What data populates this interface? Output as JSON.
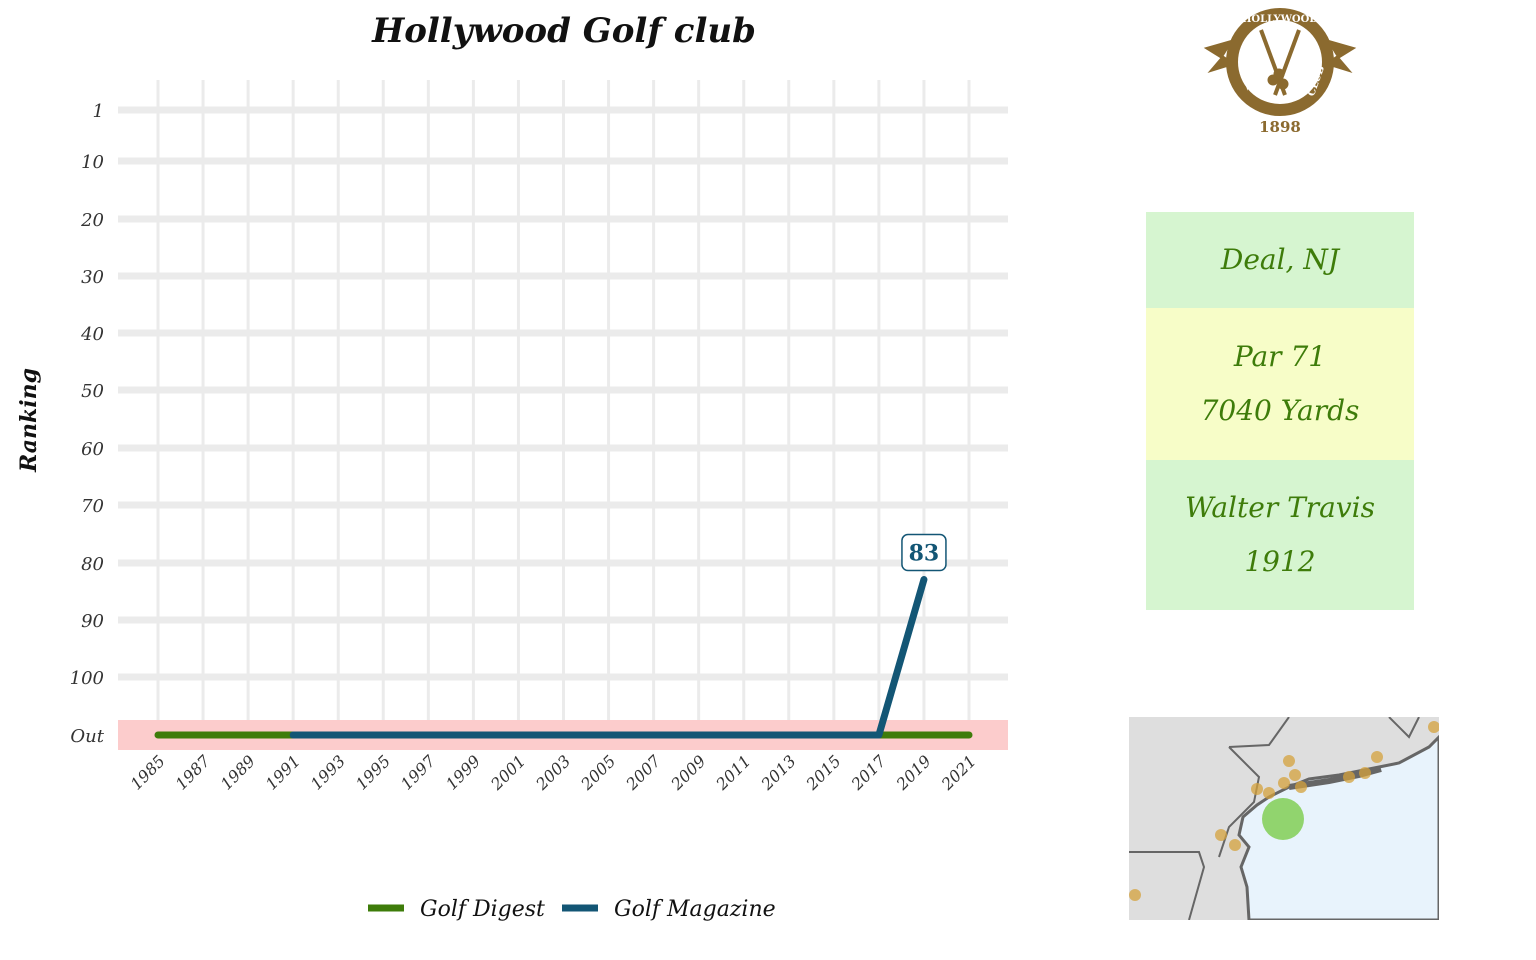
{
  "chart_data": {
    "type": "line",
    "title": "Hollywood Golf club",
    "xlabel": "",
    "ylabel": "Ranking",
    "x": [
      1985,
      1987,
      1989,
      1991,
      1993,
      1995,
      1997,
      1999,
      2001,
      2003,
      2005,
      2007,
      2009,
      2011,
      2013,
      2015,
      2017,
      2019,
      2021
    ],
    "y_tick_labels": [
      "1",
      "10",
      "20",
      "30",
      "40",
      "50",
      "60",
      "70",
      "80",
      "90",
      "100",
      "Out"
    ],
    "y_reversed": true,
    "out_band_color": "#fccccc",
    "grid": true,
    "legend_position": "bottom",
    "series": [
      {
        "name": "Golf Digest",
        "color": "#3e7c0a",
        "points": [
          {
            "x": 1985,
            "y": "Out"
          },
          {
            "x": 2021,
            "y": "Out"
          }
        ]
      },
      {
        "name": "Golf Magazine",
        "color": "#135675",
        "points": [
          {
            "x": 1991,
            "y": "Out"
          },
          {
            "x": 2017,
            "y": "Out"
          },
          {
            "x": 2019,
            "y": 83
          }
        ]
      }
    ],
    "annotations": [
      {
        "x": 2019,
        "y": 83,
        "text": "83",
        "color": "#135675"
      }
    ]
  },
  "info": {
    "location": "Deal, NJ",
    "par": "Par 71",
    "yards": "7040 Yards",
    "architect": "Walter Travis",
    "year": "1912",
    "colors": {
      "green_box": "#d6f5d0",
      "yellow_box": "#f7fdc8",
      "text": "#3e7c0a"
    }
  },
  "logo": {
    "top_text": "HOLLYWOOD",
    "left_text": "GOLF",
    "right_text": "CLUB",
    "year": "1898",
    "color": "#8b6a2f"
  },
  "map": {
    "land_color": "#dedede",
    "water_color": "#e8f3fc",
    "highlight_color": "#7acc4a",
    "other_courses_color": "#d4a23c"
  }
}
